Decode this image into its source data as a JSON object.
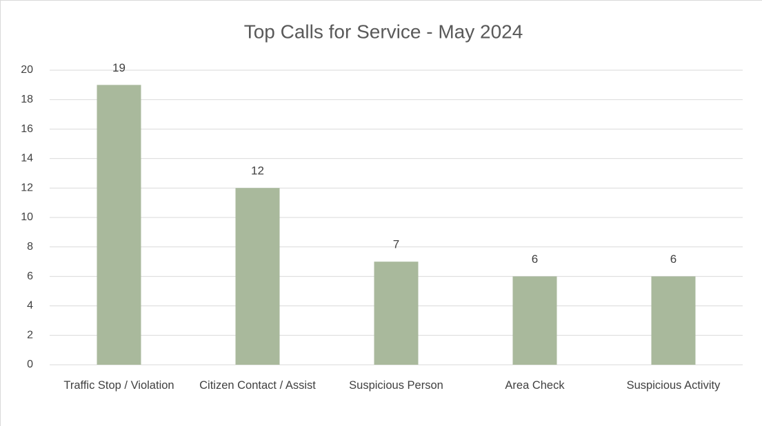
{
  "chart_data": {
    "type": "bar",
    "title": "Top Calls for Service - May 2024",
    "categories": [
      "Traffic Stop / Violation",
      "Citizen Contact / Assist",
      "Suspicious Person",
      "Area Check",
      "Suspicious Activity"
    ],
    "values": [
      19,
      12,
      7,
      6,
      6
    ],
    "color": "#a9b99c",
    "ylim": [
      0,
      20
    ],
    "yticks": [
      0,
      2,
      4,
      6,
      8,
      10,
      12,
      14,
      16,
      18,
      20
    ],
    "grid": true
  }
}
